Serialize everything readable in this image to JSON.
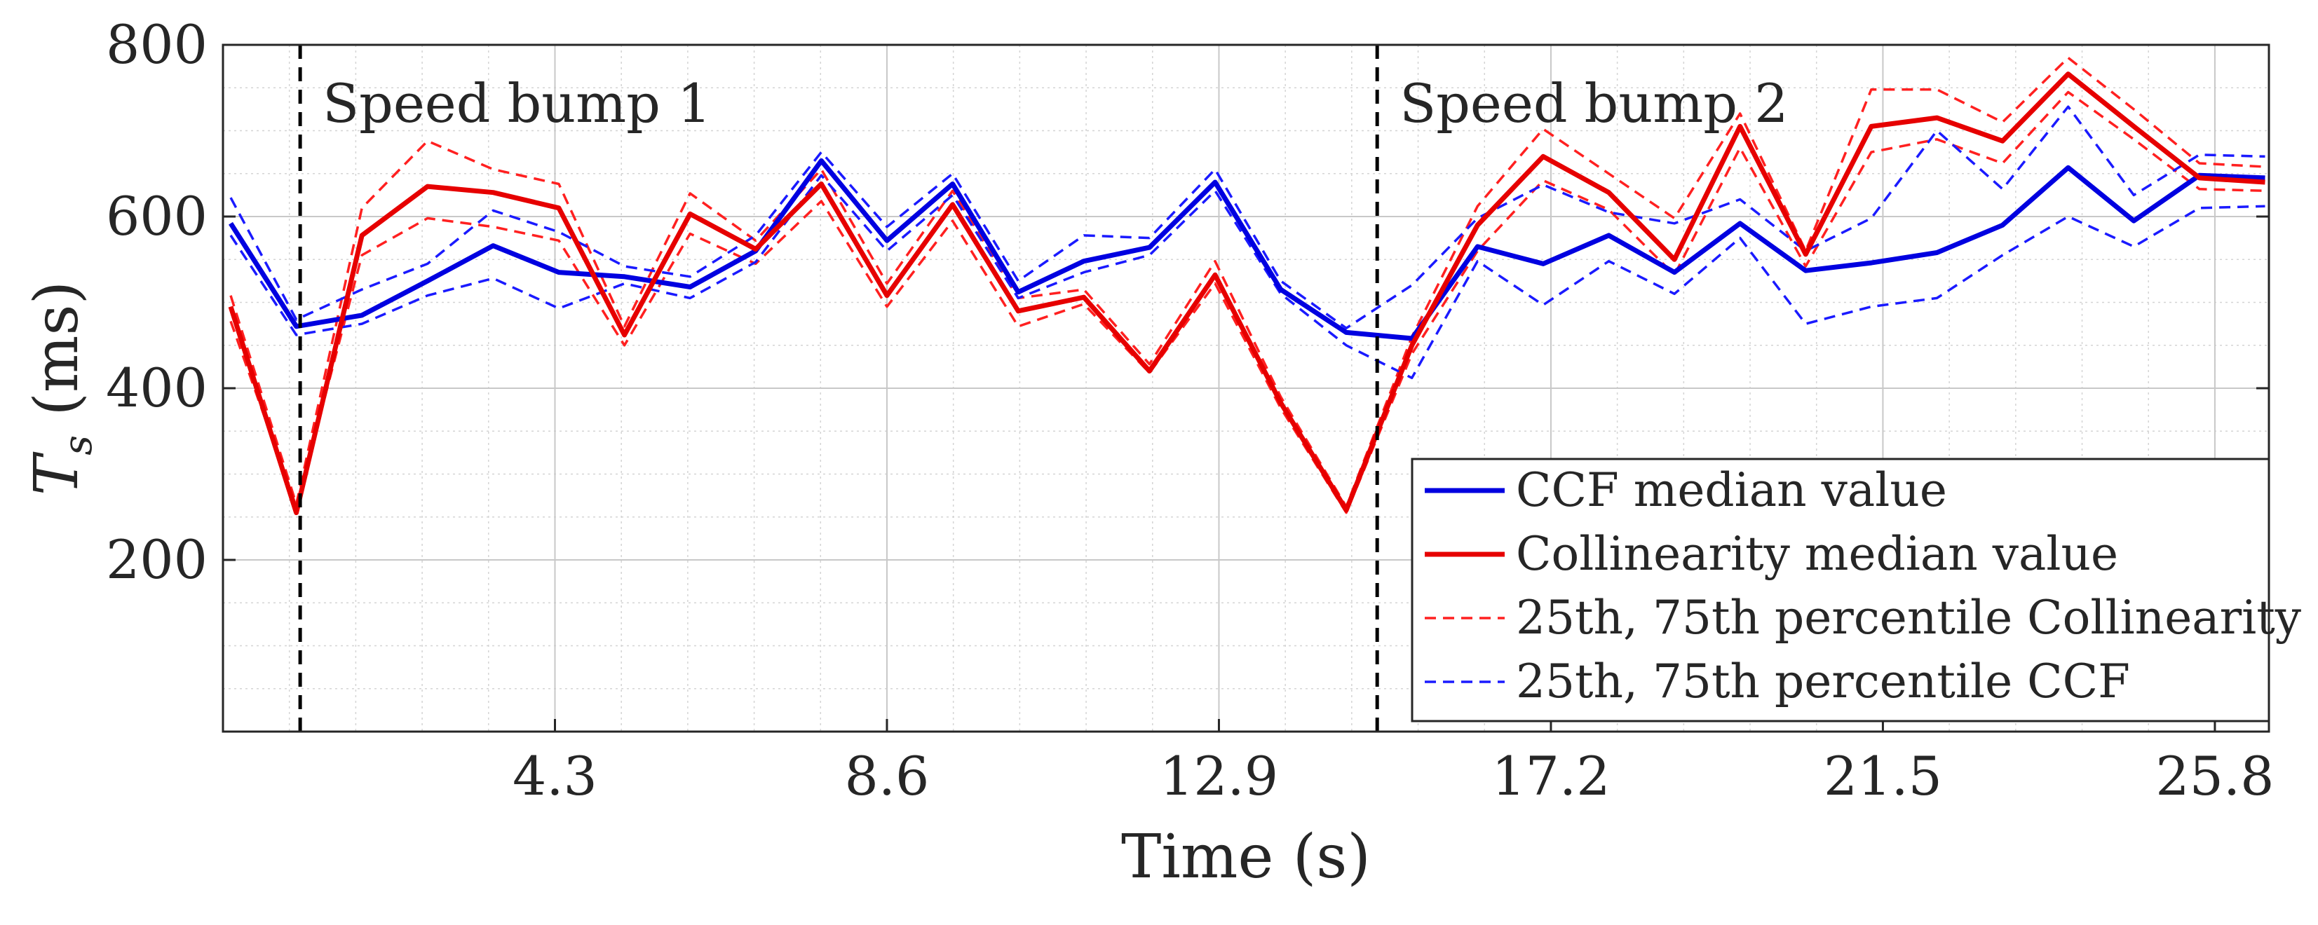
{
  "chart_data": {
    "type": "line",
    "title": "",
    "xlabel": "Time (s)",
    "ylabel": "T_s (ms)",
    "ylabel_main": "T",
    "ylabel_sub": "s",
    "ylabel_units": " (ms)",
    "xlim": [
      0,
      26.5
    ],
    "ylim": [
      0,
      800
    ],
    "xticks": [
      4.3,
      8.6,
      12.9,
      17.2,
      21.5,
      25.8
    ],
    "xtick_labels": [
      "4.3",
      "8.6",
      "12.9",
      "17.2",
      "21.5",
      "25.8"
    ],
    "yticks": [
      200,
      400,
      600,
      800
    ],
    "ytick_labels": [
      "200",
      "400",
      "600",
      "800"
    ],
    "grid": true,
    "minor_grid": true,
    "legend_position": "bottom-right",
    "x": [
      0.1,
      0.95,
      1.8,
      2.65,
      3.5,
      4.35,
      5.2,
      6.05,
      6.9,
      7.75,
      8.6,
      9.45,
      10.3,
      11.15,
      12.0,
      12.85,
      13.7,
      14.55,
      15.4,
      16.25,
      17.1,
      17.95,
      18.8,
      19.65,
      20.5,
      21.35,
      22.2,
      23.05,
      23.9,
      24.75,
      25.6,
      26.45
    ],
    "series": [
      {
        "name": "CCF median value",
        "style": "solid",
        "color": "#0000e0",
        "width": 7,
        "values": [
          592,
          472,
          485,
          525,
          566,
          535,
          530,
          518,
          560,
          665,
          572,
          638,
          512,
          548,
          564,
          640,
          515,
          465,
          458,
          565,
          545,
          578,
          535,
          592,
          537,
          546,
          558,
          590,
          657,
          595,
          648,
          645
        ]
      },
      {
        "name": "Collinearity median value",
        "style": "solid",
        "color": "#e60000",
        "width": 7,
        "values": [
          495,
          255,
          578,
          635,
          628,
          610,
          462,
          603,
          562,
          638,
          508,
          614,
          490,
          506,
          420,
          532,
          383,
          258,
          450,
          590,
          670,
          628,
          550,
          705,
          556,
          705,
          715,
          688,
          766,
          705,
          645,
          640
        ]
      },
      {
        "name": "25th percentile Collinearity",
        "style": "dashed",
        "color": "#ff2020",
        "width": 3.5,
        "values": [
          478,
          262,
          555,
          598,
          588,
          572,
          450,
          580,
          545,
          618,
          495,
          595,
          472,
          498,
          418,
          522,
          377,
          255,
          440,
          560,
          642,
          608,
          532,
          680,
          542,
          675,
          690,
          662,
          745,
          690,
          632,
          630
        ]
      },
      {
        "name": "75th percentile Collinearity",
        "style": "dashed",
        "color": "#ff2020",
        "width": 3.5,
        "values": [
          508,
          265,
          610,
          688,
          655,
          638,
          472,
          627,
          572,
          655,
          522,
          630,
          505,
          515,
          428,
          548,
          390,
          262,
          460,
          612,
          702,
          650,
          598,
          720,
          560,
          748,
          748,
          710,
          785,
          725,
          662,
          658
        ]
      },
      {
        "name": "25th percentile CCF",
        "style": "dashed",
        "color": "#1a1aff",
        "width": 3.5,
        "values": [
          578,
          462,
          475,
          508,
          528,
          493,
          522,
          505,
          547,
          648,
          560,
          625,
          505,
          535,
          555,
          630,
          510,
          450,
          412,
          548,
          497,
          548,
          510,
          575,
          475,
          495,
          505,
          555,
          600,
          565,
          610,
          612
        ]
      },
      {
        "name": "75th percentile CCF",
        "style": "dashed",
        "color": "#1a1aff",
        "width": 3.5,
        "values": [
          622,
          480,
          515,
          545,
          607,
          582,
          542,
          530,
          578,
          675,
          588,
          650,
          525,
          578,
          575,
          655,
          525,
          470,
          520,
          598,
          637,
          605,
          592,
          620,
          560,
          598,
          700,
          632,
          728,
          625,
          672,
          670
        ]
      }
    ],
    "vertical_markers": [
      {
        "x": 1.0,
        "label": "Speed bump 1"
      },
      {
        "x": 14.95,
        "label": "Speed bump 2"
      }
    ],
    "legend": [
      {
        "label": "CCF median value",
        "style": "solid",
        "color": "#0000e0"
      },
      {
        "label": "Collinearity median value",
        "style": "solid",
        "color": "#e60000"
      },
      {
        "label": "25th, 75th percentile Collinearity",
        "style": "dashed",
        "color": "#ff2020"
      },
      {
        "label": "25th, 75th percentile CCF",
        "style": "dashed",
        "color": "#1a1aff"
      }
    ]
  }
}
